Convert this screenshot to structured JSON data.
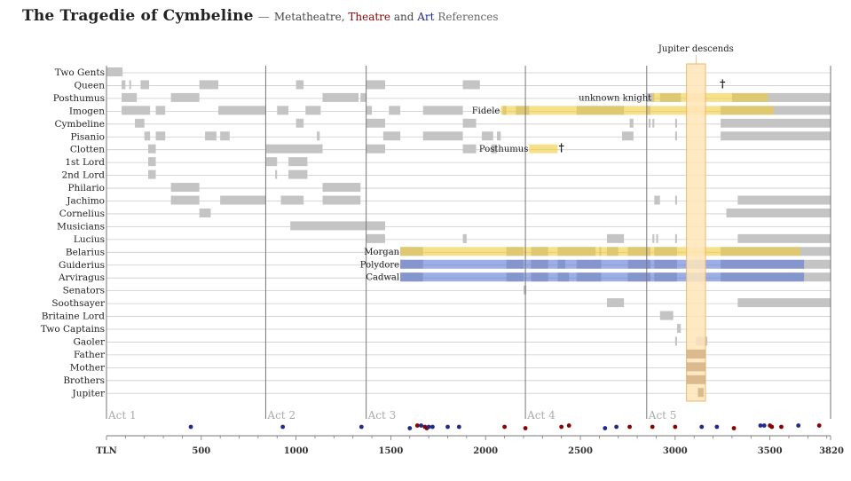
{
  "title": {
    "main": "The Tragedie of Cymbeline",
    "sep": "—",
    "meta": "Metatheatre,",
    "theatre": "Theatre",
    "and": "and",
    "art": "Art",
    "refs": "References"
  },
  "chart_data": {
    "type": "timeline",
    "x_axis": {
      "label": "TLN",
      "range": [
        0,
        3820
      ],
      "ticks": [
        500,
        1000,
        1500,
        2000,
        2500,
        3000,
        3500
      ],
      "end_label": "3820"
    },
    "characters": [
      "Two Gents",
      "Queen",
      "Posthumus",
      "Imogen",
      "Cymbeline",
      "Pisanio",
      "Clotten",
      "1st Lord",
      "2nd Lord",
      "Philario",
      "Jachimo",
      "Cornelius",
      "Musicians",
      "Lucius",
      "Belarius",
      "Guiderius",
      "Arviragus",
      "Senators",
      "Soothsayer",
      "Britaine Lord",
      "Two Captains",
      "Gaoler",
      "Father",
      "Mother",
      "Brothers",
      "Jupiter"
    ],
    "acts": [
      {
        "label": "Act 1",
        "start": 0
      },
      {
        "label": "Act 2",
        "start": 840
      },
      {
        "label": "Act 3",
        "start": 1370
      },
      {
        "label": "Act 4",
        "start": 2210
      },
      {
        "label": "Act 5",
        "start": 2850
      }
    ],
    "presence": [
      {
        "row": 0,
        "start": 0,
        "end": 85
      },
      {
        "row": 1,
        "start": 80,
        "end": 100
      },
      {
        "row": 1,
        "start": 120,
        "end": 130
      },
      {
        "row": 1,
        "start": 180,
        "end": 225
      },
      {
        "row": 1,
        "start": 490,
        "end": 590
      },
      {
        "row": 1,
        "start": 1000,
        "end": 1040
      },
      {
        "row": 1,
        "start": 1370,
        "end": 1470
      },
      {
        "row": 1,
        "start": 1880,
        "end": 1970
      },
      {
        "row": 2,
        "start": 80,
        "end": 160
      },
      {
        "row": 2,
        "start": 340,
        "end": 490
      },
      {
        "row": 2,
        "start": 1140,
        "end": 1330
      },
      {
        "row": 2,
        "start": 1340,
        "end": 1370
      },
      {
        "row": 2,
        "start": 2850,
        "end": 2890
      },
      {
        "row": 2,
        "start": 2920,
        "end": 3030
      },
      {
        "row": 2,
        "start": 3300,
        "end": 3820
      },
      {
        "row": 3,
        "start": 80,
        "end": 230
      },
      {
        "row": 3,
        "start": 260,
        "end": 310
      },
      {
        "row": 3,
        "start": 590,
        "end": 840
      },
      {
        "row": 3,
        "start": 900,
        "end": 960
      },
      {
        "row": 3,
        "start": 1050,
        "end": 1130
      },
      {
        "row": 3,
        "start": 1370,
        "end": 1400
      },
      {
        "row": 3,
        "start": 1490,
        "end": 1550
      },
      {
        "row": 3,
        "start": 1670,
        "end": 1880
      },
      {
        "row": 3,
        "start": 2090,
        "end": 2110
      },
      {
        "row": 3,
        "start": 2160,
        "end": 2230
      },
      {
        "row": 3,
        "start": 2480,
        "end": 2730
      },
      {
        "row": 3,
        "start": 2850,
        "end": 2870
      },
      {
        "row": 3,
        "start": 3240,
        "end": 3820
      },
      {
        "row": 4,
        "start": 150,
        "end": 200
      },
      {
        "row": 4,
        "start": 1000,
        "end": 1040
      },
      {
        "row": 4,
        "start": 1370,
        "end": 1470
      },
      {
        "row": 4,
        "start": 1880,
        "end": 1950
      },
      {
        "row": 4,
        "start": 2760,
        "end": 2780
      },
      {
        "row": 4,
        "start": 2860,
        "end": 2870
      },
      {
        "row": 4,
        "start": 2880,
        "end": 2890
      },
      {
        "row": 4,
        "start": 3000,
        "end": 3010
      },
      {
        "row": 4,
        "start": 3240,
        "end": 3820
      },
      {
        "row": 5,
        "start": 200,
        "end": 230
      },
      {
        "row": 5,
        "start": 260,
        "end": 310
      },
      {
        "row": 5,
        "start": 520,
        "end": 580
      },
      {
        "row": 5,
        "start": 600,
        "end": 650
      },
      {
        "row": 5,
        "start": 1110,
        "end": 1125
      },
      {
        "row": 5,
        "start": 1460,
        "end": 1550
      },
      {
        "row": 5,
        "start": 1670,
        "end": 1880
      },
      {
        "row": 5,
        "start": 1980,
        "end": 2040
      },
      {
        "row": 5,
        "start": 2060,
        "end": 2080
      },
      {
        "row": 5,
        "start": 2720,
        "end": 2780
      },
      {
        "row": 5,
        "start": 3000,
        "end": 3010
      },
      {
        "row": 5,
        "start": 3240,
        "end": 3820
      },
      {
        "row": 6,
        "start": 220,
        "end": 260
      },
      {
        "row": 6,
        "start": 840,
        "end": 1140
      },
      {
        "row": 6,
        "start": 1370,
        "end": 1470
      },
      {
        "row": 6,
        "start": 1880,
        "end": 1950
      },
      {
        "row": 6,
        "start": 2030,
        "end": 2060
      },
      {
        "row": 7,
        "start": 220,
        "end": 260
      },
      {
        "row": 7,
        "start": 840,
        "end": 900
      },
      {
        "row": 7,
        "start": 960,
        "end": 1060
      },
      {
        "row": 8,
        "start": 220,
        "end": 260
      },
      {
        "row": 8,
        "start": 890,
        "end": 900
      },
      {
        "row": 8,
        "start": 960,
        "end": 1060
      },
      {
        "row": 9,
        "start": 340,
        "end": 490
      },
      {
        "row": 9,
        "start": 1140,
        "end": 1340
      },
      {
        "row": 10,
        "start": 340,
        "end": 490
      },
      {
        "row": 10,
        "start": 600,
        "end": 840
      },
      {
        "row": 10,
        "start": 920,
        "end": 1040
      },
      {
        "row": 10,
        "start": 1140,
        "end": 1340
      },
      {
        "row": 10,
        "start": 2890,
        "end": 2920
      },
      {
        "row": 10,
        "start": 3000,
        "end": 3010
      },
      {
        "row": 10,
        "start": 3330,
        "end": 3820
      },
      {
        "row": 11,
        "start": 490,
        "end": 550
      },
      {
        "row": 11,
        "start": 3270,
        "end": 3820
      },
      {
        "row": 12,
        "start": 970,
        "end": 1470
      },
      {
        "row": 13,
        "start": 1370,
        "end": 1470
      },
      {
        "row": 13,
        "start": 1880,
        "end": 1900
      },
      {
        "row": 13,
        "start": 2640,
        "end": 2730
      },
      {
        "row": 13,
        "start": 2880,
        "end": 2890
      },
      {
        "row": 13,
        "start": 2900,
        "end": 2910
      },
      {
        "row": 13,
        "start": 3000,
        "end": 3010
      },
      {
        "row": 13,
        "start": 3330,
        "end": 3820
      },
      {
        "row": 14,
        "start": 1550,
        "end": 1670
      },
      {
        "row": 14,
        "start": 2110,
        "end": 2200
      },
      {
        "row": 14,
        "start": 2240,
        "end": 2330
      },
      {
        "row": 14,
        "start": 2380,
        "end": 2580
      },
      {
        "row": 14,
        "start": 2600,
        "end": 2610
      },
      {
        "row": 14,
        "start": 2640,
        "end": 2700
      },
      {
        "row": 14,
        "start": 2750,
        "end": 2870
      },
      {
        "row": 14,
        "start": 2890,
        "end": 3010
      },
      {
        "row": 14,
        "start": 3240,
        "end": 3820
      },
      {
        "row": 15,
        "start": 1550,
        "end": 1670
      },
      {
        "row": 15,
        "start": 2110,
        "end": 2200
      },
      {
        "row": 15,
        "start": 2240,
        "end": 2330
      },
      {
        "row": 15,
        "start": 2380,
        "end": 2420
      },
      {
        "row": 15,
        "start": 2480,
        "end": 2610
      },
      {
        "row": 15,
        "start": 2750,
        "end": 2870
      },
      {
        "row": 15,
        "start": 2890,
        "end": 3010
      },
      {
        "row": 15,
        "start": 3240,
        "end": 3820
      },
      {
        "row": 16,
        "start": 1550,
        "end": 1670
      },
      {
        "row": 16,
        "start": 2110,
        "end": 2200
      },
      {
        "row": 16,
        "start": 2240,
        "end": 2330
      },
      {
        "row": 16,
        "start": 2380,
        "end": 2440
      },
      {
        "row": 16,
        "start": 2480,
        "end": 2610
      },
      {
        "row": 16,
        "start": 2750,
        "end": 2870
      },
      {
        "row": 16,
        "start": 2890,
        "end": 3010
      },
      {
        "row": 16,
        "start": 3240,
        "end": 3820
      },
      {
        "row": 17,
        "start": 2200,
        "end": 2215
      },
      {
        "row": 18,
        "start": 2640,
        "end": 2730
      },
      {
        "row": 18,
        "start": 3330,
        "end": 3820
      },
      {
        "row": 19,
        "start": 2920,
        "end": 2990
      },
      {
        "row": 20,
        "start": 3010,
        "end": 3030
      },
      {
        "row": 21,
        "start": 3000,
        "end": 3010
      },
      {
        "row": 21,
        "start": 3110,
        "end": 3170
      },
      {
        "row": 22,
        "start": 3060,
        "end": 3160
      },
      {
        "row": 23,
        "start": 3060,
        "end": 3160
      },
      {
        "row": 24,
        "start": 3060,
        "end": 3160
      },
      {
        "row": 25,
        "start": 3120,
        "end": 3150
      }
    ],
    "disguises": [
      {
        "row": 2,
        "start": 2880,
        "end": 3490,
        "label": "unknown knight",
        "color": "#f2cc3c"
      },
      {
        "row": 3,
        "start": 2080,
        "end": 3520,
        "label": "Fidele",
        "color": "#f2cc3c"
      },
      {
        "row": 6,
        "start": 2230,
        "end": 2380,
        "label": "Posthumus",
        "color": "#f2cc3c"
      },
      {
        "row": 14,
        "start": 1550,
        "end": 3660,
        "label": "Morgan",
        "color": "#f2cc3c"
      },
      {
        "row": 15,
        "start": 1550,
        "end": 3680,
        "label": "Polydore",
        "color": "#5b78d6"
      },
      {
        "row": 16,
        "start": 1550,
        "end": 3680,
        "label": "Cadwal",
        "color": "#5b78d6"
      }
    ],
    "deaths": [
      {
        "row": 1,
        "tln": 3250,
        "symbol": "†"
      },
      {
        "row": 6,
        "tln": 2400,
        "symbol": "†"
      }
    ],
    "event": {
      "label": "Jupiter descends",
      "start": 3060,
      "end": 3160
    },
    "references": [
      {
        "tln": 445,
        "type": "art",
        "row": 0
      },
      {
        "tln": 930,
        "type": "art",
        "row": 0
      },
      {
        "tln": 1345,
        "type": "art",
        "row": 0
      },
      {
        "tln": 1600,
        "type": "art",
        "row": 1
      },
      {
        "tln": 1640,
        "type": "theatre",
        "row": -1
      },
      {
        "tln": 1660,
        "type": "art",
        "row": -1
      },
      {
        "tln": 1680,
        "type": "theatre",
        "row": 0
      },
      {
        "tln": 1690,
        "type": "theatre",
        "row": 1
      },
      {
        "tln": 1700,
        "type": "art",
        "row": 0
      },
      {
        "tln": 1720,
        "type": "art",
        "row": 0
      },
      {
        "tln": 1800,
        "type": "art",
        "row": 0
      },
      {
        "tln": 1860,
        "type": "art",
        "row": 0
      },
      {
        "tln": 2100,
        "type": "theatre",
        "row": 0
      },
      {
        "tln": 2210,
        "type": "theatre",
        "row": 1
      },
      {
        "tln": 2400,
        "type": "theatre",
        "row": 0
      },
      {
        "tln": 2440,
        "type": "theatre",
        "row": -1
      },
      {
        "tln": 2630,
        "type": "art",
        "row": 1
      },
      {
        "tln": 2690,
        "type": "art",
        "row": 0
      },
      {
        "tln": 2760,
        "type": "theatre",
        "row": 0
      },
      {
        "tln": 2880,
        "type": "theatre",
        "row": 0
      },
      {
        "tln": 3000,
        "type": "theatre",
        "row": 0
      },
      {
        "tln": 3140,
        "type": "art",
        "row": 0
      },
      {
        "tln": 3220,
        "type": "art",
        "row": 0
      },
      {
        "tln": 3310,
        "type": "theatre",
        "row": 1
      },
      {
        "tln": 3450,
        "type": "art",
        "row": -1
      },
      {
        "tln": 3470,
        "type": "art",
        "row": -1
      },
      {
        "tln": 3500,
        "type": "theatre",
        "row": -1
      },
      {
        "tln": 3510,
        "type": "theatre",
        "row": 0
      },
      {
        "tln": 3560,
        "type": "theatre",
        "row": 0
      },
      {
        "tln": 3650,
        "type": "art",
        "row": -1
      },
      {
        "tln": 3760,
        "type": "theatre",
        "row": -1
      }
    ],
    "colors": {
      "presence": "#c4c4c4",
      "gridline": "#cccccc",
      "act_line": "#777777",
      "theatre": "#8b0000",
      "art": "#1e2a8c",
      "event_fill": "#ffe5b8",
      "event_stroke": "#e8b870",
      "event_dark": "#c9a070"
    }
  }
}
